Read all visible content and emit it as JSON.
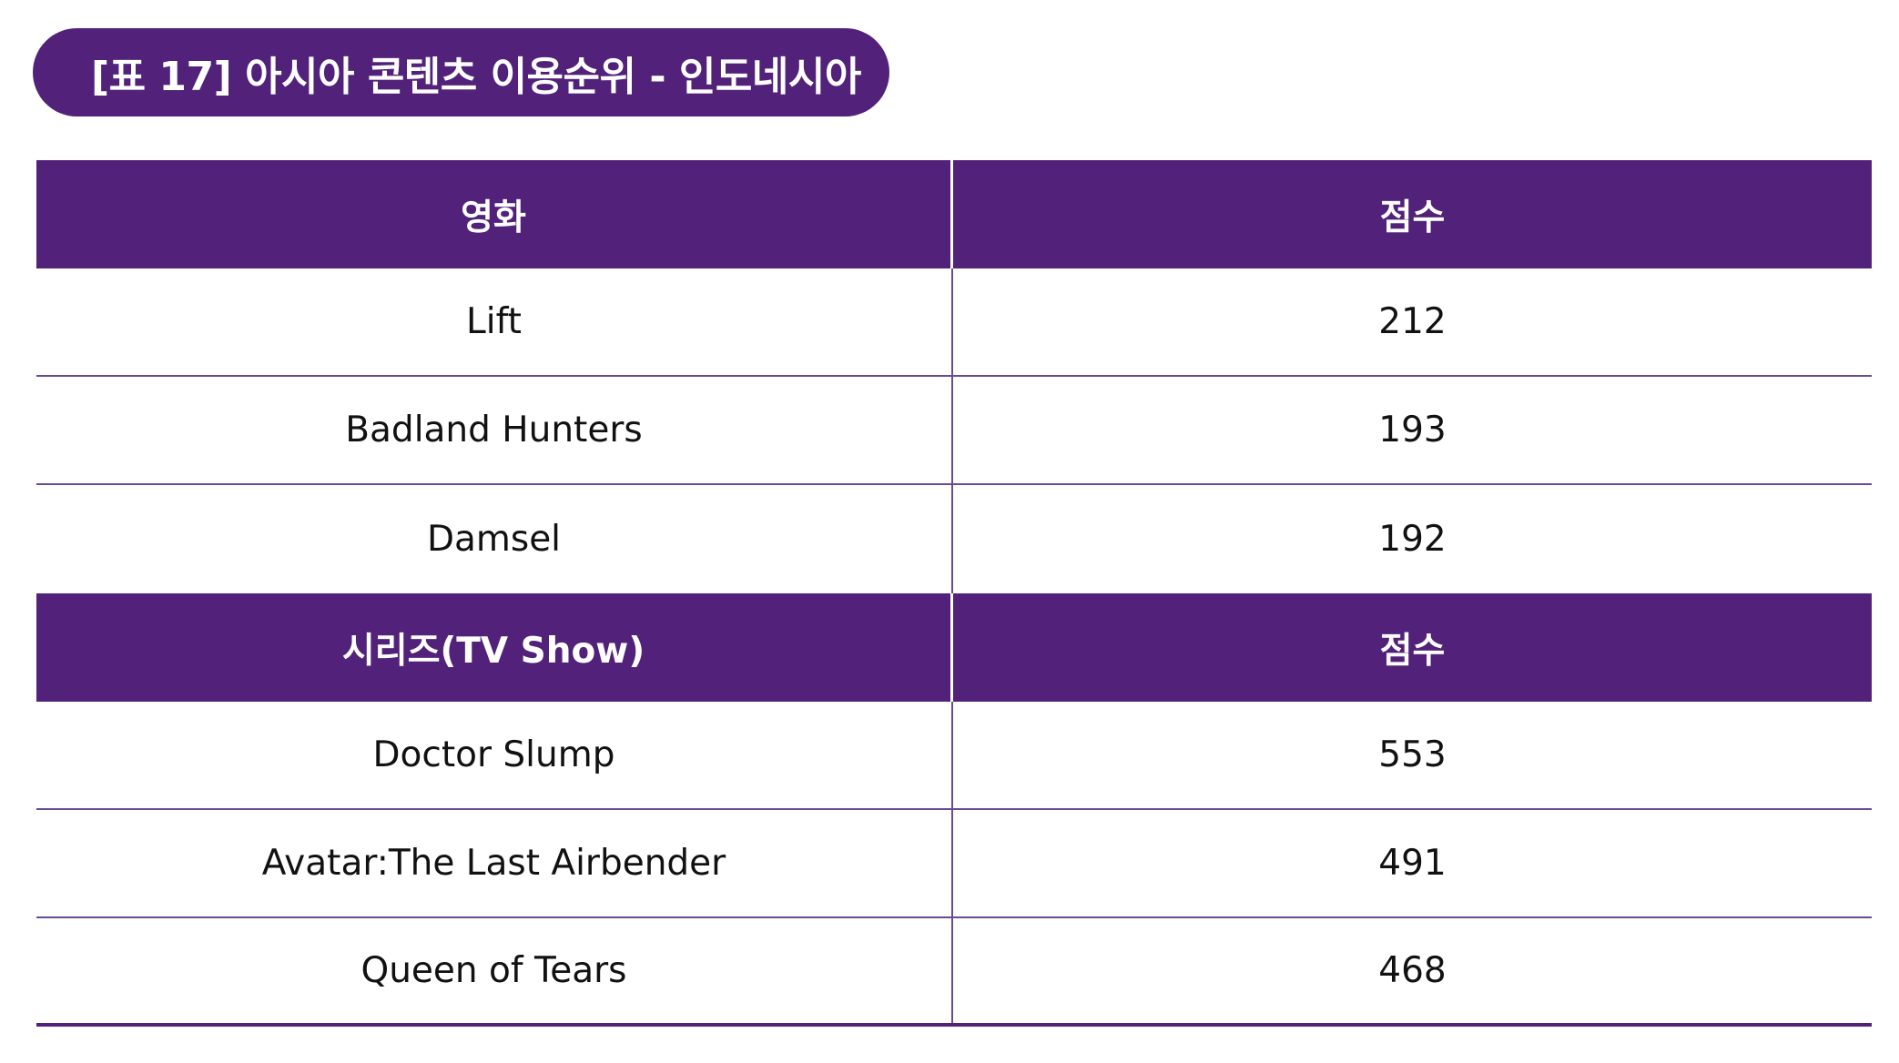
{
  "title": "[표 17] 아시아 콘텐츠 이용순위 - 인도네시아",
  "sections": [
    {
      "header": {
        "col1": "영화",
        "col2": "점수"
      },
      "rows": [
        {
          "name": "Lift",
          "score": "212"
        },
        {
          "name": "Badland Hunters",
          "score": "193"
        },
        {
          "name": "Damsel",
          "score": "192"
        }
      ]
    },
    {
      "header": {
        "col1": "시리즈(TV Show)",
        "col2": "점수"
      },
      "rows": [
        {
          "name": "Doctor Slump",
          "score": "553"
        },
        {
          "name": "Avatar:The Last Airbender",
          "score": "491"
        },
        {
          "name": "Queen of Tears",
          "score": "468"
        }
      ]
    }
  ],
  "colors": {
    "accent": "#52227a",
    "divider": "#6a4a95"
  }
}
